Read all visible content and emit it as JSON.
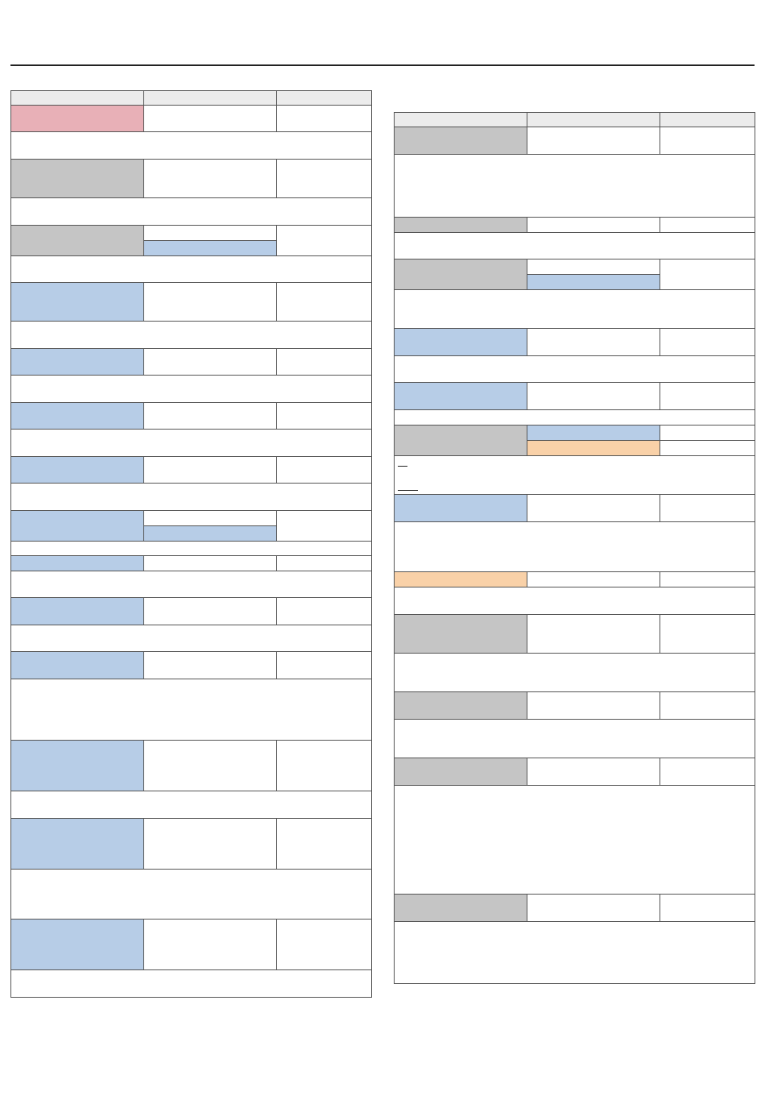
{
  "document": {
    "title": "",
    "left_table": {
      "header": [
        "",
        "",
        ""
      ]
    },
    "right_table": {
      "header": [
        "",
        "",
        ""
      ]
    }
  },
  "colors": {
    "header": "#ececec",
    "gray": "#c5c5c5",
    "blue": "#b7cde7",
    "pink": "#e8b0b7",
    "peach": "#f9d1a8",
    "rule": "#222222",
    "border": "#555555"
  }
}
